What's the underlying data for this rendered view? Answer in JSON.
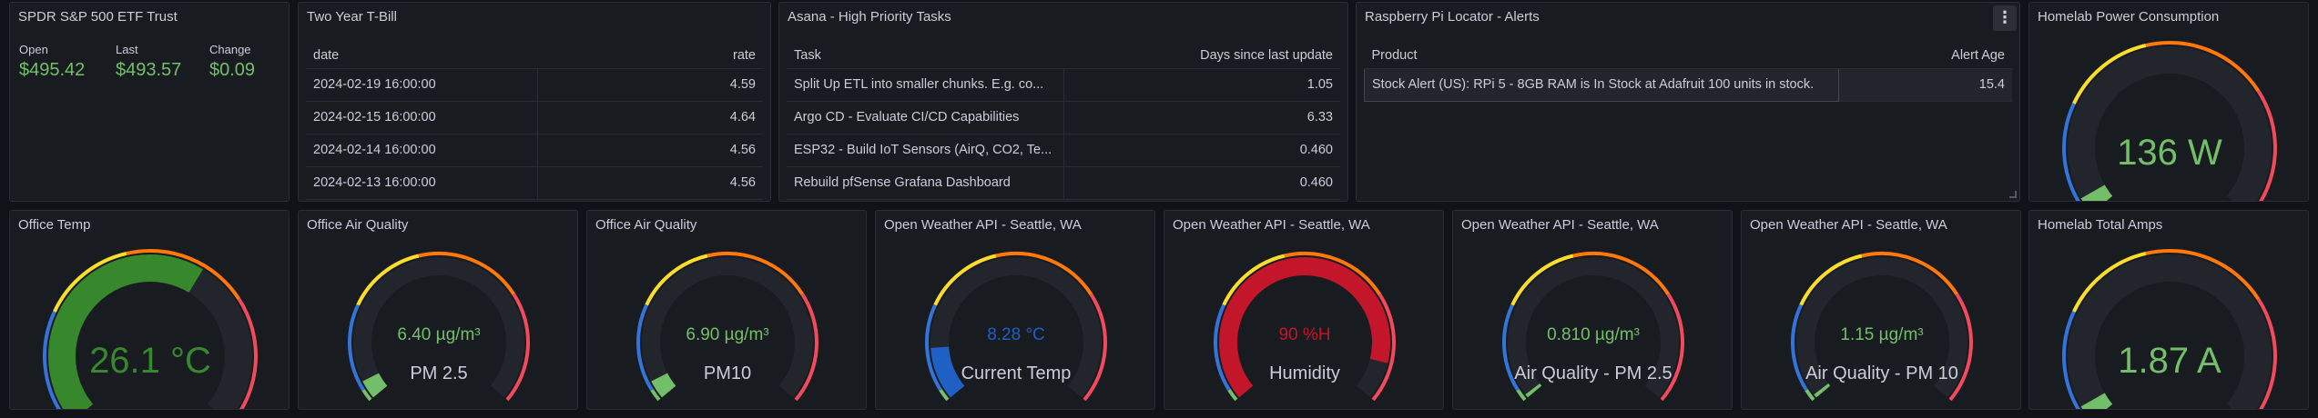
{
  "spdr": {
    "title": "SPDR S&P 500 ETF Trust",
    "stats": [
      {
        "label": "Open",
        "value": "$495.42"
      },
      {
        "label": "Last",
        "value": "$493.57"
      },
      {
        "label": "Change",
        "value": "$0.09"
      }
    ]
  },
  "tbill": {
    "title": "Two Year T-Bill",
    "columns": [
      "date",
      "rate"
    ],
    "rows": [
      [
        "2024-02-19 16:00:00",
        "4.59"
      ],
      [
        "2024-02-15 16:00:00",
        "4.64"
      ],
      [
        "2024-02-14 16:00:00",
        "4.56"
      ],
      [
        "2024-02-13 16:00:00",
        "4.56"
      ]
    ]
  },
  "asana": {
    "title": "Asana - High Priority Tasks",
    "columns": [
      "Task",
      "Days since last update"
    ],
    "rows": [
      [
        "Split Up ETL into smaller chunks. E.g. co...",
        "1.05"
      ],
      [
        "Argo CD - Evaluate CI/CD Capabilities",
        "6.33"
      ],
      [
        "ESP32 - Build IoT Sensors (AirQ, CO2, Te...",
        "0.460"
      ],
      [
        "Rebuild pfSense Grafana Dashboard",
        "0.460"
      ]
    ]
  },
  "rpi": {
    "title": "Raspberry Pi Locator - Alerts",
    "menu_glyph": "⋮",
    "columns": [
      "Product",
      "Alert Age"
    ],
    "rows": [
      [
        "Stock Alert (US): RPi 5 - 8GB RAM is In Stock at Adafruit 100 units in stock.",
        "15.4"
      ]
    ]
  },
  "power": {
    "title": "Homelab Power Consumption",
    "value_text": "136 W",
    "fraction": 0.04,
    "color": "#73bf69"
  },
  "office_temp": {
    "title": "Office Temp",
    "value_text": "26.1 °C",
    "fraction": 0.62,
    "color": "#37872d"
  },
  "aq1": {
    "title": "Office Air Quality",
    "value_text": "6.40 µg/m³",
    "label": "PM 2.5",
    "fraction": 0.05,
    "color": "#73bf69"
  },
  "aq2": {
    "title": "Office Air Quality",
    "value_text": "6.90 µg/m³",
    "label": "PM10",
    "fraction": 0.05,
    "color": "#73bf69"
  },
  "w_temp": {
    "title": "Open Weather API - Seattle, WA",
    "value_text": "8.28 °C",
    "label": "Current Temp",
    "fraction": 0.14,
    "color": "#1f60c4"
  },
  "w_hum": {
    "title": "Open Weather API - Seattle, WA",
    "value_text": "90 %H",
    "label": "Humidity",
    "fraction": 0.9,
    "color": "#c4162a"
  },
  "w_pm25": {
    "title": "Open Weather API - Seattle, WA",
    "value_text": "0.810 µg/m³",
    "label": "Air Quality - PM 2.5",
    "fraction": 0.01,
    "color": "#73bf69"
  },
  "w_pm10": {
    "title": "Open Weather API - Seattle, WA",
    "value_text": "1.15 µg/m³",
    "label": "Air Quality - PM 10",
    "fraction": 0.01,
    "color": "#73bf69"
  },
  "amps": {
    "title": "Homelab Total Amps",
    "value_text": "1.87 A",
    "fraction": 0.04,
    "color": "#73bf69"
  }
}
